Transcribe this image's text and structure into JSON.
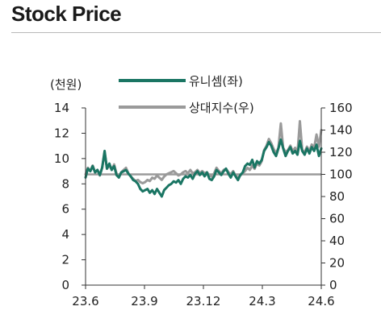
{
  "heading": "Stock Price",
  "chart_data": {
    "type": "line",
    "title": "",
    "left_axis_unit": "(천원)",
    "x_ticks": [
      "23.6",
      "23.9",
      "23.12",
      "24.3",
      "24.6"
    ],
    "y_left": {
      "ticks": [
        0,
        2,
        4,
        6,
        8,
        10,
        12,
        14
      ],
      "range": [
        0,
        14
      ]
    },
    "y_right": {
      "ticks": [
        0,
        20,
        40,
        60,
        80,
        100,
        120,
        140,
        160
      ],
      "range": [
        0,
        160
      ]
    },
    "reference_line": {
      "axis": "right",
      "value": 100
    },
    "legend_position": "top",
    "series": [
      {
        "name": "유니셈(좌)",
        "axis": "left",
        "color": "#1a7563",
        "values": [
          8.5,
          9.2,
          9.0,
          9.4,
          8.9,
          9.1,
          8.7,
          9.3,
          10.6,
          9.2,
          9.6,
          9.1,
          9.4,
          8.7,
          8.5,
          8.9,
          9.0,
          9.1,
          8.8,
          8.6,
          8.3,
          8.2,
          8.0,
          7.6,
          7.4,
          7.5,
          7.6,
          7.3,
          7.5,
          7.2,
          7.6,
          7.3,
          7.0,
          7.5,
          7.7,
          7.9,
          8.0,
          8.2,
          8.1,
          8.3,
          8.0,
          8.4,
          8.6,
          8.5,
          8.7,
          8.4,
          8.8,
          9.0,
          8.7,
          8.9,
          8.6,
          8.9,
          8.4,
          8.3,
          8.6,
          9.1,
          8.9,
          8.7,
          9.0,
          9.2,
          8.8,
          8.5,
          8.9,
          8.6,
          8.3,
          8.7,
          8.9,
          9.4,
          9.6,
          9.5,
          9.9,
          9.3,
          9.8,
          9.6,
          9.9,
          10.6,
          10.9,
          11.3,
          11.0,
          10.5,
          10.2,
          10.8,
          11.5,
          10.8,
          10.2,
          10.6,
          10.9,
          10.4,
          10.6,
          10.3,
          11.4,
          10.6,
          10.3,
          10.8,
          10.4,
          10.9,
          10.6,
          11.1,
          10.2,
          10.8
        ]
      },
      {
        "name": "상대지수(우)",
        "axis": "right",
        "color": "#9a9a9a",
        "values": [
          100,
          106,
          103,
          108,
          102,
          104,
          99,
          106,
          120,
          105,
          108,
          104,
          109,
          101,
          98,
          102,
          104,
          106,
          101,
          98,
          96,
          94,
          95,
          93,
          92,
          93,
          95,
          94,
          97,
          96,
          99,
          97,
          95,
          98,
          100,
          101,
          102,
          103,
          101,
          99,
          100,
          102,
          103,
          101,
          104,
          101,
          102,
          104,
          101,
          103,
          101,
          102,
          99,
          98,
          101,
          106,
          103,
          101,
          104,
          105,
          102,
          100,
          103,
          99,
          97,
          99,
          101,
          103,
          106,
          104,
          108,
          105,
          110,
          108,
          112,
          122,
          126,
          132,
          128,
          123,
          119,
          124,
          146,
          124,
          120,
          122,
          126,
          121,
          124,
          119,
          148,
          122,
          120,
          125,
          121,
          127,
          124,
          136,
          125,
          140
        ]
      }
    ]
  }
}
